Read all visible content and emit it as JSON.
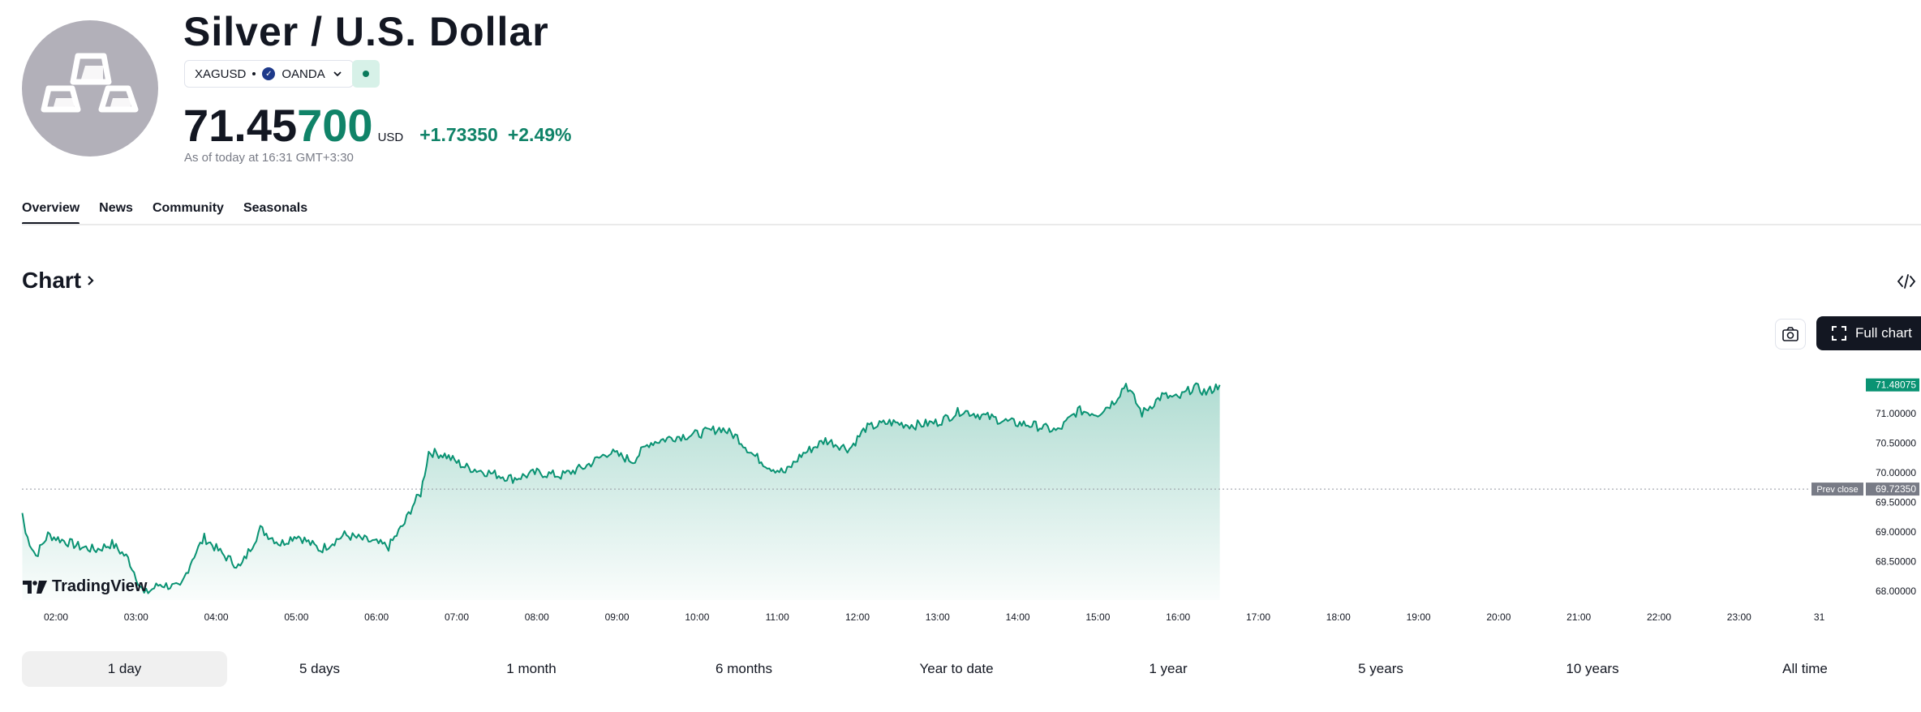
{
  "header": {
    "title": "Silver / U.S. Dollar",
    "logo_icon": "silver-bars-icon",
    "symbol": "XAGUSD",
    "exchange": "OANDA",
    "market_status_color": "#0b7a5c"
  },
  "quote": {
    "price_main": "71.45",
    "price_accent": "700",
    "currency": "USD",
    "change": "+1.73350",
    "change_pct": "+2.49%",
    "as_of": "As of today at 16:31 GMT+3:30",
    "accent_color": "#108368"
  },
  "tabs": [
    {
      "label": "Overview",
      "active": true
    },
    {
      "label": "News",
      "active": false
    },
    {
      "label": "Community",
      "active": false
    },
    {
      "label": "Seasonals",
      "active": false
    }
  ],
  "chart_section": {
    "heading": "Chart",
    "full_chart_label": "Full chart",
    "brand": "TradingView"
  },
  "chart_data": {
    "type": "area",
    "x_labels": [
      "02:00",
      "03:00",
      "04:00",
      "05:00",
      "06:00",
      "07:00",
      "08:00",
      "09:00",
      "10:00",
      "11:00",
      "12:00",
      "13:00",
      "14:00",
      "15:00",
      "16:00",
      "17:00",
      "18:00",
      "19:00",
      "20:00",
      "21:00",
      "22:00",
      "23:00",
      "31"
    ],
    "y_ticks": [
      "71.00000",
      "70.50000",
      "70.00000",
      "69.50000",
      "69.00000",
      "68.50000",
      "68.00000"
    ],
    "ylim": [
      67.85,
      71.75
    ],
    "current_price_label": "71.48075",
    "prev_close": 69.7235,
    "prev_close_label": "Prev close",
    "prev_close_value": "69.72350",
    "line_color": "#0a9373",
    "series": [
      {
        "t": 1.58,
        "v": 69.32
      },
      {
        "t": 1.62,
        "v": 68.98
      },
      {
        "t": 1.75,
        "v": 68.6
      },
      {
        "t": 1.9,
        "v": 68.95
      },
      {
        "t": 2.1,
        "v": 68.85
      },
      {
        "t": 2.3,
        "v": 68.75
      },
      {
        "t": 2.5,
        "v": 68.7
      },
      {
        "t": 2.7,
        "v": 68.8
      },
      {
        "t": 2.9,
        "v": 68.55
      },
      {
        "t": 3.1,
        "v": 67.95
      },
      {
        "t": 3.3,
        "v": 68.12
      },
      {
        "t": 3.55,
        "v": 68.05
      },
      {
        "t": 3.7,
        "v": 68.55
      },
      {
        "t": 3.85,
        "v": 68.9
      },
      {
        "t": 4.1,
        "v": 68.6
      },
      {
        "t": 4.3,
        "v": 68.4
      },
      {
        "t": 4.55,
        "v": 69.05
      },
      {
        "t": 4.8,
        "v": 68.8
      },
      {
        "t": 5.0,
        "v": 68.95
      },
      {
        "t": 5.3,
        "v": 68.7
      },
      {
        "t": 5.6,
        "v": 68.95
      },
      {
        "t": 5.9,
        "v": 68.85
      },
      {
        "t": 6.15,
        "v": 68.75
      },
      {
        "t": 6.35,
        "v": 69.15
      },
      {
        "t": 6.45,
        "v": 69.45
      },
      {
        "t": 6.55,
        "v": 69.65
      },
      {
        "t": 6.65,
        "v": 70.35
      },
      {
        "t": 6.85,
        "v": 70.3
      },
      {
        "t": 7.1,
        "v": 70.1
      },
      {
        "t": 7.4,
        "v": 70.0
      },
      {
        "t": 7.7,
        "v": 69.9
      },
      {
        "t": 8.0,
        "v": 70.0
      },
      {
        "t": 8.3,
        "v": 69.95
      },
      {
        "t": 8.6,
        "v": 70.1
      },
      {
        "t": 8.9,
        "v": 70.35
      },
      {
        "t": 9.2,
        "v": 70.2
      },
      {
        "t": 9.4,
        "v": 70.5
      },
      {
        "t": 9.7,
        "v": 70.6
      },
      {
        "t": 10.0,
        "v": 70.65
      },
      {
        "t": 10.3,
        "v": 70.75
      },
      {
        "t": 10.5,
        "v": 70.6
      },
      {
        "t": 10.7,
        "v": 70.3
      },
      {
        "t": 10.9,
        "v": 70.1
      },
      {
        "t": 11.1,
        "v": 70.0
      },
      {
        "t": 11.3,
        "v": 70.3
      },
      {
        "t": 11.6,
        "v": 70.55
      },
      {
        "t": 11.9,
        "v": 70.4
      },
      {
        "t": 12.1,
        "v": 70.75
      },
      {
        "t": 12.4,
        "v": 70.85
      },
      {
        "t": 12.7,
        "v": 70.8
      },
      {
        "t": 13.0,
        "v": 70.85
      },
      {
        "t": 13.3,
        "v": 71.05
      },
      {
        "t": 13.6,
        "v": 70.95
      },
      {
        "t": 13.9,
        "v": 70.85
      },
      {
        "t": 14.2,
        "v": 70.8
      },
      {
        "t": 14.5,
        "v": 70.7
      },
      {
        "t": 14.75,
        "v": 71.05
      },
      {
        "t": 15.0,
        "v": 71.0
      },
      {
        "t": 15.2,
        "v": 71.2
      },
      {
        "t": 15.35,
        "v": 71.5
      },
      {
        "t": 15.55,
        "v": 71.0
      },
      {
        "t": 15.8,
        "v": 71.3
      },
      {
        "t": 16.0,
        "v": 71.25
      },
      {
        "t": 16.2,
        "v": 71.45
      },
      {
        "t": 16.35,
        "v": 71.35
      },
      {
        "t": 16.52,
        "v": 71.48
      }
    ]
  },
  "ranges": [
    {
      "label": "1 day",
      "active": true
    },
    {
      "label": "5 days",
      "active": false
    },
    {
      "label": "1 month",
      "active": false
    },
    {
      "label": "6 months",
      "active": false
    },
    {
      "label": "Year to date",
      "active": false
    },
    {
      "label": "1 year",
      "active": false
    },
    {
      "label": "5 years",
      "active": false
    },
    {
      "label": "10 years",
      "active": false
    },
    {
      "label": "All time",
      "active": false
    }
  ]
}
